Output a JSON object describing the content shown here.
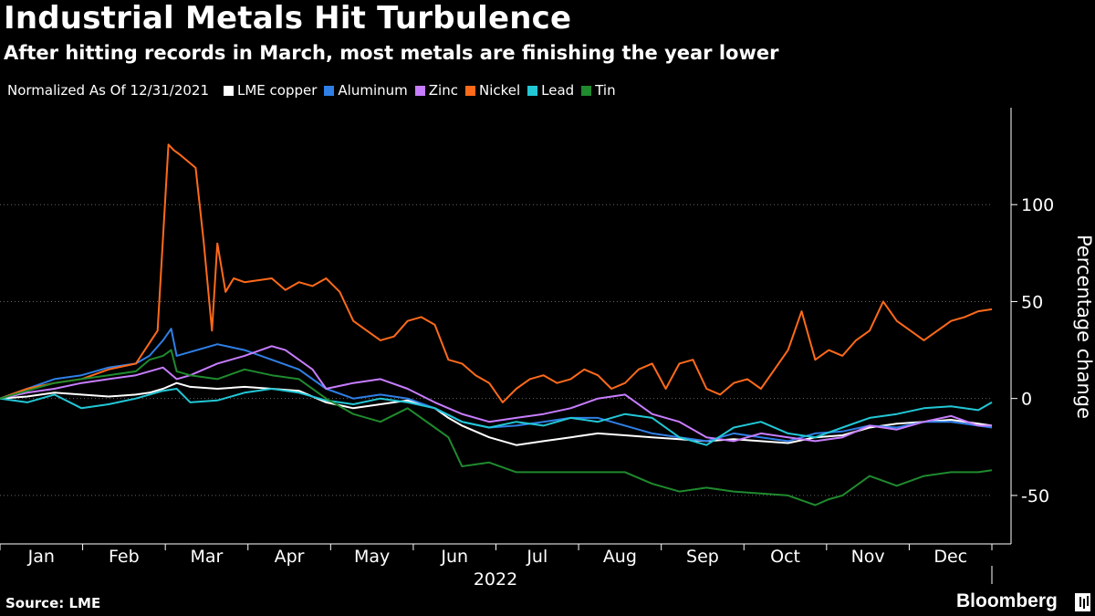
{
  "chart_data": {
    "type": "line",
    "title": "Industrial Metals Hit Turbulence",
    "subtitle": "After hitting records in March, most metals are finishing the year lower",
    "legend_note": "Normalized As Of 12/31/2021",
    "ylabel": "Percentage change",
    "xlabel": "2022",
    "ylim": [
      -75,
      150
    ],
    "yticks": [
      100,
      50,
      0,
      -50
    ],
    "x_range_days": [
      0,
      365
    ],
    "month_labels": [
      "Jan",
      "Feb",
      "Mar",
      "Apr",
      "May",
      "Jun",
      "Jul",
      "Aug",
      "Sep",
      "Oct",
      "Nov",
      "Dec"
    ],
    "legend_position": "top-left",
    "grid": "horizontal dashed",
    "series": [
      {
        "name": "LME copper",
        "color": "#ffffff",
        "x": [
          0,
          10,
          20,
          30,
          40,
          50,
          55,
          60,
          65,
          70,
          80,
          90,
          100,
          110,
          120,
          130,
          140,
          150,
          160,
          165,
          170,
          180,
          190,
          200,
          210,
          220,
          230,
          240,
          250,
          260,
          270,
          280,
          290,
          300,
          310,
          320,
          330,
          340,
          350,
          360,
          365
        ],
        "y": [
          0,
          1,
          3,
          2,
          1,
          2,
          3,
          5,
          8,
          6,
          5,
          6,
          5,
          4,
          -2,
          -5,
          -3,
          -1,
          -5,
          -10,
          -14,
          -20,
          -24,
          -22,
          -20,
          -18,
          -19,
          -20,
          -21,
          -22,
          -21,
          -22,
          -23,
          -20,
          -19,
          -15,
          -13,
          -12,
          -11,
          -13,
          -14
        ]
      },
      {
        "name": "Aluminum",
        "color": "#2f7fe6",
        "x": [
          0,
          10,
          20,
          30,
          40,
          50,
          55,
          60,
          63,
          65,
          70,
          80,
          90,
          100,
          110,
          120,
          130,
          140,
          150,
          160,
          170,
          180,
          190,
          200,
          210,
          220,
          230,
          240,
          250,
          260,
          270,
          280,
          290,
          300,
          310,
          320,
          330,
          340,
          350,
          360,
          365
        ],
        "y": [
          0,
          5,
          10,
          12,
          16,
          18,
          22,
          30,
          36,
          22,
          24,
          28,
          25,
          20,
          15,
          5,
          0,
          2,
          0,
          -5,
          -12,
          -15,
          -14,
          -12,
          -10,
          -10,
          -14,
          -18,
          -20,
          -22,
          -18,
          -20,
          -22,
          -18,
          -17,
          -14,
          -15,
          -12,
          -12,
          -14,
          -15
        ]
      },
      {
        "name": "Zinc",
        "color": "#c77dff",
        "x": [
          0,
          10,
          20,
          30,
          40,
          50,
          55,
          60,
          65,
          70,
          80,
          90,
          100,
          105,
          110,
          115,
          120,
          130,
          140,
          150,
          160,
          170,
          180,
          190,
          200,
          210,
          220,
          230,
          240,
          250,
          260,
          270,
          280,
          290,
          300,
          310,
          320,
          330,
          340,
          350,
          360,
          365
        ],
        "y": [
          0,
          3,
          5,
          8,
          10,
          12,
          14,
          16,
          10,
          12,
          18,
          22,
          27,
          25,
          20,
          15,
          5,
          8,
          10,
          5,
          -2,
          -8,
          -12,
          -10,
          -8,
          -5,
          0,
          2,
          -8,
          -12,
          -20,
          -22,
          -18,
          -20,
          -22,
          -20,
          -14,
          -16,
          -12,
          -9,
          -14,
          -14
        ]
      },
      {
        "name": "Nickel",
        "color": "#ff6a1a",
        "x": [
          0,
          10,
          20,
          30,
          40,
          50,
          58,
          62,
          64,
          66,
          72,
          75,
          78,
          80,
          83,
          86,
          90,
          100,
          105,
          110,
          115,
          120,
          125,
          130,
          135,
          140,
          145,
          150,
          155,
          160,
          165,
          170,
          175,
          180,
          185,
          190,
          195,
          200,
          205,
          210,
          215,
          220,
          225,
          230,
          235,
          240,
          245,
          250,
          255,
          260,
          265,
          270,
          275,
          280,
          285,
          290,
          295,
          300,
          305,
          310,
          315,
          320,
          325,
          330,
          335,
          340,
          345,
          350,
          355,
          360,
          365
        ],
        "y": [
          0,
          5,
          8,
          10,
          15,
          18,
          35,
          131,
          128,
          126,
          119,
          80,
          35,
          80,
          55,
          62,
          60,
          62,
          56,
          60,
          58,
          62,
          55,
          40,
          35,
          30,
          32,
          40,
          42,
          38,
          20,
          18,
          12,
          8,
          -2,
          5,
          10,
          12,
          8,
          10,
          15,
          12,
          5,
          8,
          15,
          18,
          5,
          18,
          20,
          5,
          2,
          8,
          10,
          5,
          15,
          25,
          45,
          20,
          25,
          22,
          30,
          35,
          50,
          40,
          35,
          30,
          35,
          40,
          42,
          45,
          46
        ]
      },
      {
        "name": "Lead",
        "color": "#22c7d6",
        "x": [
          0,
          10,
          20,
          30,
          40,
          50,
          55,
          60,
          65,
          70,
          80,
          90,
          100,
          110,
          120,
          130,
          140,
          150,
          160,
          170,
          180,
          190,
          200,
          210,
          220,
          230,
          240,
          250,
          260,
          270,
          280,
          290,
          300,
          310,
          320,
          330,
          340,
          350,
          360,
          365
        ],
        "y": [
          0,
          -2,
          2,
          -5,
          -3,
          0,
          2,
          4,
          5,
          -2,
          -1,
          3,
          5,
          3,
          -1,
          -3,
          0,
          -2,
          -5,
          -12,
          -15,
          -12,
          -14,
          -10,
          -12,
          -8,
          -10,
          -20,
          -24,
          -15,
          -12,
          -18,
          -20,
          -15,
          -10,
          -8,
          -5,
          -4,
          -6,
          -2
        ]
      },
      {
        "name": "Tin",
        "color": "#1f8a2e",
        "x": [
          0,
          10,
          20,
          30,
          40,
          50,
          55,
          60,
          63,
          65,
          70,
          80,
          90,
          100,
          110,
          120,
          130,
          140,
          150,
          160,
          165,
          170,
          180,
          190,
          200,
          210,
          220,
          230,
          240,
          250,
          260,
          270,
          280,
          290,
          300,
          305,
          310,
          320,
          330,
          340,
          350,
          360,
          365
        ],
        "y": [
          0,
          4,
          8,
          10,
          12,
          14,
          20,
          22,
          25,
          14,
          12,
          10,
          15,
          12,
          10,
          0,
          -8,
          -12,
          -5,
          -15,
          -20,
          -35,
          -33,
          -38,
          -38,
          -38,
          -38,
          -38,
          -44,
          -48,
          -46,
          -48,
          -49,
          -50,
          -55,
          -52,
          -50,
          -40,
          -45,
          -40,
          -38,
          -38,
          -37
        ]
      }
    ]
  },
  "footer": {
    "source": "Source: LME",
    "brand": "Bloomberg"
  }
}
